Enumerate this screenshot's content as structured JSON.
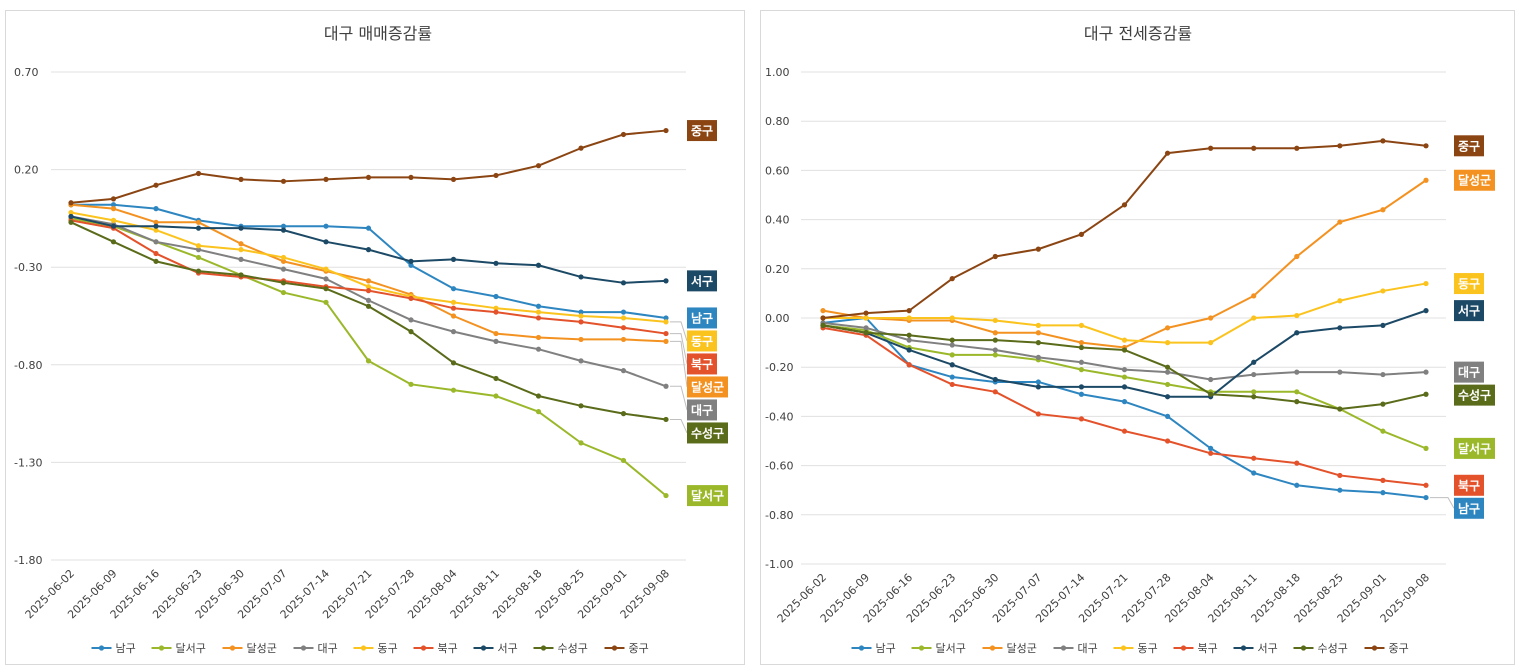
{
  "chart_data": [
    {
      "type": "line",
      "title": "대구 매매증감률",
      "categories": [
        "2025-06-02",
        "2025-06-09",
        "2025-06-16",
        "2025-06-23",
        "2025-06-30",
        "2025-07-07",
        "2025-07-14",
        "2025-07-21",
        "2025-07-28",
        "2025-08-04",
        "2025-08-11",
        "2025-08-18",
        "2025-08-25",
        "2025-09-01",
        "2025-09-08"
      ],
      "yticks": [
        "0.70",
        "0.20",
        "-0.30",
        "-0.80",
        "-1.30",
        "-1.80"
      ],
      "ylim": [
        -1.8,
        0.7
      ],
      "series": [
        {
          "name": "남구",
          "color": "#2e86c1",
          "values": [
            0.02,
            0.02,
            0.0,
            -0.06,
            -0.09,
            -0.09,
            -0.09,
            -0.1,
            -0.29,
            -0.41,
            -0.45,
            -0.5,
            -0.53,
            -0.53,
            -0.56
          ]
        },
        {
          "name": "달서구",
          "color": "#9ab82a",
          "values": [
            -0.05,
            -0.09,
            -0.17,
            -0.25,
            -0.34,
            -0.43,
            -0.48,
            -0.78,
            -0.9,
            -0.93,
            -0.96,
            -1.04,
            -1.2,
            -1.29,
            -1.47
          ]
        },
        {
          "name": "달성군",
          "color": "#f39221",
          "values": [
            0.02,
            0.0,
            -0.07,
            -0.07,
            -0.18,
            -0.27,
            -0.32,
            -0.37,
            -0.44,
            -0.55,
            -0.64,
            -0.66,
            -0.67,
            -0.67,
            -0.68
          ]
        },
        {
          "name": "대구",
          "color": "#808080",
          "values": [
            -0.04,
            -0.08,
            -0.17,
            -0.21,
            -0.26,
            -0.31,
            -0.36,
            -0.47,
            -0.57,
            -0.63,
            -0.68,
            -0.72,
            -0.78,
            -0.83,
            -0.91
          ]
        },
        {
          "name": "동구",
          "color": "#fbc31e",
          "values": [
            -0.02,
            -0.06,
            -0.11,
            -0.19,
            -0.21,
            -0.25,
            -0.31,
            -0.4,
            -0.45,
            -0.48,
            -0.51,
            -0.53,
            -0.55,
            -0.56,
            -0.58
          ]
        },
        {
          "name": "북구",
          "color": "#e3522b",
          "values": [
            -0.06,
            -0.1,
            -0.23,
            -0.33,
            -0.35,
            -0.37,
            -0.4,
            -0.42,
            -0.46,
            -0.51,
            -0.53,
            -0.56,
            -0.58,
            -0.61,
            -0.64
          ]
        },
        {
          "name": "서구",
          "color": "#1c4966",
          "values": [
            -0.04,
            -0.09,
            -0.09,
            -0.1,
            -0.1,
            -0.11,
            -0.17,
            -0.21,
            -0.27,
            -0.26,
            -0.28,
            -0.29,
            -0.35,
            -0.38,
            -0.37
          ]
        },
        {
          "name": "수성구",
          "color": "#5a6b1a",
          "values": [
            -0.07,
            -0.17,
            -0.27,
            -0.32,
            -0.34,
            -0.38,
            -0.41,
            -0.5,
            -0.63,
            -0.79,
            -0.87,
            -0.96,
            -1.01,
            -1.05,
            -1.08
          ]
        },
        {
          "name": "중구",
          "color": "#8b4513",
          "values": [
            0.03,
            0.05,
            0.12,
            0.18,
            0.15,
            0.14,
            0.15,
            0.16,
            0.16,
            0.15,
            0.17,
            0.22,
            0.31,
            0.38,
            0.4
          ]
        }
      ]
    },
    {
      "type": "line",
      "title": "대구 전세증감률",
      "categories": [
        "2025-06-02",
        "2025-06-09",
        "2025-06-16",
        "2025-06-23",
        "2025-06-30",
        "2025-07-07",
        "2025-07-14",
        "2025-07-21",
        "2025-07-28",
        "2025-08-04",
        "2025-08-11",
        "2025-08-18",
        "2025-08-25",
        "2025-09-01",
        "2025-09-08"
      ],
      "yticks": [
        "1.00",
        "0.80",
        "0.60",
        "0.40",
        "0.20",
        "0.00",
        "-0.20",
        "-0.40",
        "-0.60",
        "-0.80",
        "-1.00"
      ],
      "ylim": [
        -1.0,
        1.0
      ],
      "series": [
        {
          "name": "남구",
          "color": "#2e86c1",
          "values": [
            -0.02,
            0.0,
            -0.19,
            -0.24,
            -0.26,
            -0.26,
            -0.31,
            -0.34,
            -0.4,
            -0.53,
            -0.63,
            -0.68,
            -0.7,
            -0.71,
            -0.73
          ]
        },
        {
          "name": "달서구",
          "color": "#9ab82a",
          "values": [
            -0.03,
            -0.05,
            -0.12,
            -0.15,
            -0.15,
            -0.17,
            -0.21,
            -0.24,
            -0.27,
            -0.3,
            -0.3,
            -0.3,
            -0.37,
            -0.46,
            -0.53
          ]
        },
        {
          "name": "달성군",
          "color": "#f39221",
          "values": [
            0.03,
            0.0,
            -0.01,
            -0.01,
            -0.06,
            -0.06,
            -0.1,
            -0.12,
            -0.04,
            0.0,
            0.09,
            0.25,
            0.39,
            0.44,
            0.56
          ]
        },
        {
          "name": "대구",
          "color": "#808080",
          "values": [
            -0.02,
            -0.04,
            -0.09,
            -0.11,
            -0.13,
            -0.16,
            -0.18,
            -0.21,
            -0.22,
            -0.25,
            -0.23,
            -0.22,
            -0.22,
            -0.23,
            -0.22
          ]
        },
        {
          "name": "동구",
          "color": "#fbc31e",
          "values": [
            0.0,
            0.0,
            0.0,
            0.0,
            -0.01,
            -0.03,
            -0.03,
            -0.09,
            -0.1,
            -0.1,
            0.0,
            0.01,
            0.07,
            0.11,
            0.14
          ]
        },
        {
          "name": "북구",
          "color": "#e3522b",
          "values": [
            -0.04,
            -0.07,
            -0.19,
            -0.27,
            -0.3,
            -0.39,
            -0.41,
            -0.46,
            -0.5,
            -0.55,
            -0.57,
            -0.59,
            -0.64,
            -0.66,
            -0.68
          ]
        },
        {
          "name": "서구",
          "color": "#1c4966",
          "values": [
            -0.03,
            -0.06,
            -0.13,
            -0.19,
            -0.25,
            -0.28,
            -0.28,
            -0.28,
            -0.32,
            -0.32,
            -0.18,
            -0.06,
            -0.04,
            -0.03,
            0.03
          ]
        },
        {
          "name": "수성구",
          "color": "#5a6b1a",
          "values": [
            -0.03,
            -0.06,
            -0.07,
            -0.09,
            -0.09,
            -0.1,
            -0.12,
            -0.13,
            -0.2,
            -0.31,
            -0.32,
            -0.34,
            -0.37,
            -0.35,
            -0.31
          ]
        },
        {
          "name": "중구",
          "color": "#8b4513",
          "values": [
            0.0,
            0.02,
            0.03,
            0.16,
            0.25,
            0.28,
            0.34,
            0.46,
            0.67,
            0.69,
            0.69,
            0.69,
            0.7,
            0.72,
            0.7
          ]
        }
      ]
    }
  ]
}
